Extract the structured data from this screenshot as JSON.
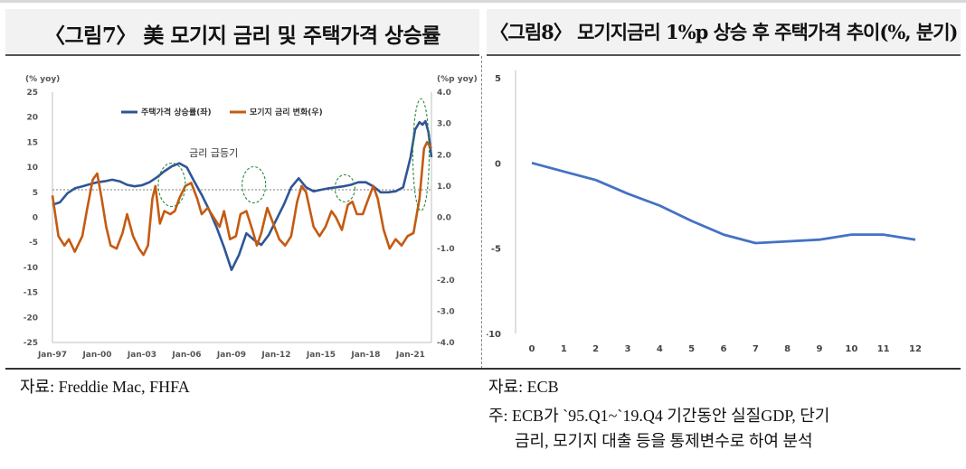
{
  "left_panel": {
    "title": "〈그림7〉 美 모기지 금리 및 주택가격 상승률",
    "source": "자료: Freddie Mac, FHFA"
  },
  "right_panel": {
    "title": "〈그림8〉 모기지금리 1%p 상승 후 주택가격 추이(%, 분기)",
    "source": "자료: ECB",
    "note_line1": "주: ECB가 `95.Q1~`19.Q4 기간동안 실질GDP, 단기",
    "note_line2": "금리, 모기지 대출 등을 통제변수로 하여 분석"
  },
  "chart_data": [
    {
      "type": "line",
      "title": "",
      "ylabel_left": "(% yoy)",
      "ylabel_right": "(%p yoy)",
      "ylim_left": [
        -25,
        25
      ],
      "ylim_right": [
        -4.0,
        4.0
      ],
      "yticks_left": [
        "25",
        "20",
        "15",
        "10",
        "5",
        "0",
        "-5",
        "-10",
        "-15",
        "-20",
        "-25"
      ],
      "yticks_right": [
        "4.0",
        "3.0",
        "2.0",
        "1.0",
        "0.0",
        "-1.0",
        "-2.0",
        "-3.0",
        "-4.0"
      ],
      "xticks": [
        "Jan-97",
        "Jan-00",
        "Jan-03",
        "Jan-06",
        "Jan-09",
        "Jan-12",
        "Jan-15",
        "Jan-18",
        "Jan-21"
      ],
      "x_range": [
        1997.0,
        2022.4
      ],
      "legend_position": "top",
      "annotation": "금리 급등기",
      "reference_line_left_axis": 5.5,
      "highlight_periods": [
        2005.0,
        2010.5,
        2016.6,
        2021.7
      ],
      "series": [
        {
          "name": "주택가격 상승률(좌)",
          "axis": "left",
          "color": "#2f5597",
          "x": [
            1997.0,
            1997.5,
            1998.0,
            1998.5,
            1999.0,
            1999.5,
            2000.0,
            2000.5,
            2001.0,
            2001.5,
            2002.0,
            2002.5,
            2003.0,
            2003.5,
            2004.0,
            2004.5,
            2005.0,
            2005.5,
            2006.0,
            2006.5,
            2007.0,
            2007.5,
            2008.0,
            2008.5,
            2009.0,
            2009.5,
            2010.0,
            2010.5,
            2011.0,
            2011.5,
            2012.0,
            2012.5,
            2013.0,
            2013.5,
            2014.0,
            2014.5,
            2015.0,
            2015.5,
            2016.0,
            2016.5,
            2017.0,
            2017.5,
            2018.0,
            2018.5,
            2019.0,
            2019.5,
            2020.0,
            2020.5,
            2021.0,
            2021.3,
            2021.6,
            2021.8,
            2022.0,
            2022.2,
            2022.4
          ],
          "values": [
            2.5,
            3.0,
            4.8,
            5.8,
            6.2,
            6.6,
            7.0,
            7.2,
            7.5,
            7.2,
            6.5,
            6.2,
            6.4,
            7.0,
            8.0,
            9.2,
            10.2,
            10.8,
            10.0,
            7.2,
            4.5,
            1.5,
            -2.0,
            -6.0,
            -10.5,
            -7.5,
            -3.2,
            -4.5,
            -5.5,
            -3.5,
            -0.5,
            2.5,
            6.0,
            7.8,
            6.0,
            5.2,
            5.5,
            5.8,
            6.0,
            6.2,
            6.5,
            7.0,
            7.0,
            6.2,
            5.0,
            5.0,
            5.2,
            6.0,
            12.0,
            17.5,
            19.0,
            18.5,
            19.2,
            17.0,
            12.0
          ]
        },
        {
          "name": "모기지 금리 변화(우)",
          "axis": "right",
          "color": "#c55a11",
          "x": [
            1997.0,
            1997.4,
            1997.8,
            1998.1,
            1998.5,
            1999.0,
            1999.3,
            1999.7,
            2000.0,
            2000.3,
            2000.6,
            2000.9,
            2001.3,
            2001.7,
            2002.0,
            2002.4,
            2002.8,
            2003.1,
            2003.4,
            2003.7,
            2003.9,
            2004.2,
            2004.5,
            2004.9,
            2005.2,
            2005.5,
            2005.9,
            2006.3,
            2006.7,
            2007.0,
            2007.4,
            2007.8,
            2008.2,
            2008.5,
            2008.9,
            2009.3,
            2009.6,
            2010.0,
            2010.4,
            2010.7,
            2011.0,
            2011.4,
            2011.8,
            2012.2,
            2012.6,
            2013.0,
            2013.4,
            2013.7,
            2014.0,
            2014.5,
            2014.9,
            2015.3,
            2015.7,
            2016.0,
            2016.4,
            2016.8,
            2017.1,
            2017.4,
            2017.8,
            2018.1,
            2018.5,
            2018.8,
            2019.2,
            2019.6,
            2020.0,
            2020.4,
            2020.8,
            2021.2,
            2021.6,
            2021.9,
            2022.1,
            2022.4
          ],
          "values": [
            0.7,
            -0.6,
            -0.9,
            -0.7,
            -1.1,
            -0.6,
            0.2,
            1.2,
            1.4,
            0.6,
            -0.3,
            -0.9,
            -1.0,
            -0.5,
            0.1,
            -0.6,
            -1.0,
            -1.2,
            -0.9,
            0.6,
            1.0,
            -0.2,
            0.2,
            0.1,
            0.2,
            0.6,
            1.0,
            1.1,
            0.6,
            0.1,
            0.3,
            0.0,
            -0.3,
            0.2,
            -0.7,
            -0.6,
            0.1,
            0.2,
            -0.4,
            -0.9,
            -0.5,
            0.3,
            -0.2,
            -0.7,
            -0.9,
            -0.6,
            0.5,
            1.0,
            0.8,
            -0.3,
            -0.6,
            -0.3,
            0.2,
            0.0,
            -0.4,
            0.4,
            0.5,
            0.1,
            0.1,
            0.5,
            1.0,
            0.6,
            -0.4,
            -1.0,
            -0.7,
            -0.9,
            -0.6,
            -0.5,
            0.6,
            2.2,
            2.4,
            2.2
          ]
        }
      ]
    },
    {
      "type": "line",
      "title": "",
      "x": [
        0,
        1,
        2,
        3,
        4,
        5,
        6,
        7,
        8,
        9,
        10,
        11,
        12
      ],
      "ylim": [
        -10,
        5
      ],
      "yticks": [
        "5",
        "0",
        "-5",
        "-10"
      ],
      "xticks": [
        "0",
        "1",
        "2",
        "3",
        "4",
        "5",
        "6",
        "7",
        "8",
        "9",
        "10",
        "11",
        "12"
      ],
      "series": [
        {
          "name": "",
          "color": "#4472c4",
          "values": [
            0,
            -0.5,
            -1.0,
            -1.8,
            -2.5,
            -3.4,
            -4.2,
            -4.7,
            -4.6,
            -4.5,
            -4.2,
            -4.2,
            -4.5
          ]
        }
      ]
    }
  ]
}
